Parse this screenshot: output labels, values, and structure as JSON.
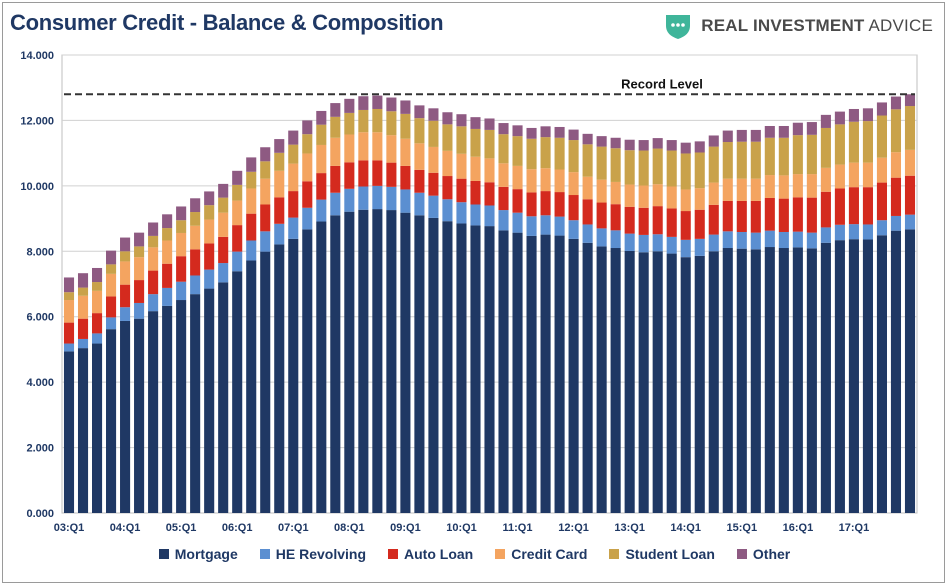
{
  "header": {
    "title": "Consumer Credit - Balance & Composition",
    "brand_name_bold": "REAL INVESTMENT",
    "brand_name_rest": " ADVICE",
    "brand_icon": "shield-logo-icon",
    "brand_color": "#3fb59a"
  },
  "chart_data": {
    "type": "bar",
    "stacked": true,
    "title": "Consumer Credit - Balance & Composition",
    "xlabel": "",
    "ylabel": "",
    "ylim": [
      0,
      14
    ],
    "y_ticks": [
      "0.000",
      "2.000",
      "4.000",
      "6.000",
      "8.000",
      "10.000",
      "12.000",
      "14.000"
    ],
    "y_tick_values": [
      0,
      2,
      4,
      6,
      8,
      10,
      12,
      14
    ],
    "x_tick_labels": [
      "03:Q1",
      "04:Q1",
      "05:Q1",
      "06:Q1",
      "07:Q1",
      "08:Q1",
      "09:Q1",
      "10:Q1",
      "11:Q1",
      "12:Q1",
      "13:Q1",
      "14:Q1",
      "15:Q1",
      "16:Q1",
      "17:Q1"
    ],
    "quarters_per_label": 4,
    "grid": "horizontal",
    "legend_position": "bottom",
    "annotation": {
      "text": "Record Level",
      "value": 12.8,
      "style": "dashed"
    },
    "series": [
      {
        "name": "Mortgage",
        "color": "#1f3864",
        "values": [
          4.94,
          5.04,
          5.18,
          5.62,
          5.87,
          5.94,
          6.17,
          6.33,
          6.51,
          6.69,
          6.86,
          7.05,
          7.39,
          7.72,
          7.99,
          8.21,
          8.38,
          8.67,
          8.91,
          9.1,
          9.21,
          9.27,
          9.29,
          9.26,
          9.18,
          9.1,
          9.02,
          8.92,
          8.85,
          8.79,
          8.77,
          8.64,
          8.57,
          8.47,
          8.51,
          8.48,
          8.38,
          8.26,
          8.15,
          8.1,
          8.01,
          7.97,
          8.0,
          7.93,
          7.82,
          7.86,
          8.0,
          8.1,
          8.08,
          8.06,
          8.13,
          8.1,
          8.12,
          8.09,
          8.26,
          8.34,
          8.37,
          8.36,
          8.49,
          8.63,
          8.67
        ]
      },
      {
        "name": "HE Revolving",
        "color": "#5b8fd1",
        "values": [
          0.24,
          0.28,
          0.31,
          0.36,
          0.42,
          0.48,
          0.52,
          0.55,
          0.56,
          0.57,
          0.58,
          0.59,
          0.6,
          0.61,
          0.62,
          0.63,
          0.65,
          0.66,
          0.67,
          0.69,
          0.7,
          0.71,
          0.71,
          0.71,
          0.71,
          0.69,
          0.68,
          0.67,
          0.65,
          0.64,
          0.63,
          0.62,
          0.61,
          0.6,
          0.59,
          0.58,
          0.57,
          0.56,
          0.55,
          0.54,
          0.53,
          0.53,
          0.52,
          0.51,
          0.53,
          0.52,
          0.51,
          0.51,
          0.51,
          0.51,
          0.5,
          0.49,
          0.48,
          0.48,
          0.47,
          0.47,
          0.46,
          0.46,
          0.46,
          0.45,
          0.45
        ]
      },
      {
        "name": "Auto Loan",
        "color": "#d42a1e",
        "values": [
          0.64,
          0.62,
          0.62,
          0.64,
          0.69,
          0.7,
          0.72,
          0.74,
          0.78,
          0.8,
          0.8,
          0.8,
          0.81,
          0.82,
          0.82,
          0.81,
          0.81,
          0.81,
          0.81,
          0.82,
          0.81,
          0.8,
          0.78,
          0.74,
          0.72,
          0.7,
          0.7,
          0.71,
          0.72,
          0.72,
          0.71,
          0.71,
          0.72,
          0.73,
          0.74,
          0.75,
          0.77,
          0.77,
          0.79,
          0.8,
          0.82,
          0.83,
          0.86,
          0.87,
          0.88,
          0.89,
          0.91,
          0.93,
          0.95,
          0.97,
          1.0,
          1.02,
          1.05,
          1.07,
          1.09,
          1.11,
          1.13,
          1.14,
          1.15,
          1.17,
          1.19
        ]
      },
      {
        "name": "Credit Card",
        "color": "#f4a460",
        "values": [
          0.69,
          0.7,
          0.68,
          0.69,
          0.71,
          0.7,
          0.71,
          0.71,
          0.71,
          0.72,
          0.73,
          0.74,
          0.75,
          0.77,
          0.79,
          0.81,
          0.84,
          0.85,
          0.86,
          0.86,
          0.85,
          0.86,
          0.86,
          0.84,
          0.83,
          0.81,
          0.79,
          0.77,
          0.76,
          0.74,
          0.73,
          0.72,
          0.71,
          0.71,
          0.7,
          0.69,
          0.7,
          0.69,
          0.7,
          0.68,
          0.68,
          0.68,
          0.67,
          0.67,
          0.66,
          0.66,
          0.68,
          0.68,
          0.68,
          0.68,
          0.7,
          0.71,
          0.71,
          0.72,
          0.73,
          0.73,
          0.75,
          0.75,
          0.76,
          0.78,
          0.79
        ]
      },
      {
        "name": "Student Loan",
        "color": "#c9a24a",
        "values": [
          0.24,
          0.25,
          0.27,
          0.29,
          0.31,
          0.33,
          0.35,
          0.38,
          0.39,
          0.42,
          0.44,
          0.46,
          0.48,
          0.51,
          0.53,
          0.55,
          0.58,
          0.59,
          0.62,
          0.64,
          0.66,
          0.68,
          0.71,
          0.73,
          0.76,
          0.77,
          0.8,
          0.81,
          0.84,
          0.85,
          0.87,
          0.89,
          0.91,
          0.93,
          0.95,
          0.97,
          0.98,
          0.99,
          1.01,
          1.03,
          1.05,
          1.07,
          1.09,
          1.1,
          1.1,
          1.09,
          1.1,
          1.12,
          1.13,
          1.13,
          1.14,
          1.15,
          1.19,
          1.2,
          1.22,
          1.23,
          1.25,
          1.27,
          1.29,
          1.31,
          1.34
        ]
      },
      {
        "name": "Other",
        "color": "#8e5a82",
        "values": [
          0.45,
          0.44,
          0.43,
          0.42,
          0.42,
          0.42,
          0.41,
          0.42,
          0.42,
          0.42,
          0.42,
          0.42,
          0.43,
          0.44,
          0.43,
          0.42,
          0.43,
          0.42,
          0.42,
          0.42,
          0.43,
          0.42,
          0.41,
          0.42,
          0.41,
          0.39,
          0.38,
          0.37,
          0.37,
          0.36,
          0.35,
          0.34,
          0.33,
          0.33,
          0.33,
          0.33,
          0.32,
          0.32,
          0.32,
          0.32,
          0.32,
          0.32,
          0.32,
          0.32,
          0.33,
          0.34,
          0.34,
          0.35,
          0.36,
          0.36,
          0.36,
          0.36,
          0.38,
          0.39,
          0.4,
          0.39,
          0.39,
          0.39,
          0.4,
          0.39,
          0.36
        ]
      }
    ]
  }
}
